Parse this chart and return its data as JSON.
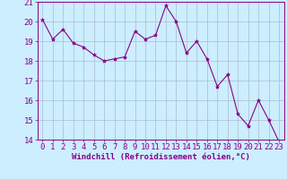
{
  "x": [
    0,
    1,
    2,
    3,
    4,
    5,
    6,
    7,
    8,
    9,
    10,
    11,
    12,
    13,
    14,
    15,
    16,
    17,
    18,
    19,
    20,
    21,
    22,
    23
  ],
  "y": [
    20.1,
    19.1,
    19.6,
    18.9,
    18.7,
    18.3,
    18.0,
    18.1,
    18.2,
    19.5,
    19.1,
    19.3,
    20.8,
    20.0,
    18.4,
    19.0,
    18.1,
    16.7,
    17.3,
    15.3,
    14.7,
    16.0,
    15.0,
    13.9
  ],
  "line_color": "#880088",
  "marker": "*",
  "marker_size": 3,
  "bg_color": "#cceeff",
  "grid_color": "#aabbcc",
  "xlabel": "Windchill (Refroidissement éolien,°C)",
  "xlabel_color": "#880088",
  "ylim": [
    14,
    21
  ],
  "xlim_min": -0.5,
  "xlim_max": 23.5,
  "yticks": [
    14,
    15,
    16,
    17,
    18,
    19,
    20,
    21
  ],
  "xticks": [
    0,
    1,
    2,
    3,
    4,
    5,
    6,
    7,
    8,
    9,
    10,
    11,
    12,
    13,
    14,
    15,
    16,
    17,
    18,
    19,
    20,
    21,
    22,
    23
  ],
  "tick_color": "#880088",
  "spine_color": "#880088",
  "font_size": 6.5
}
